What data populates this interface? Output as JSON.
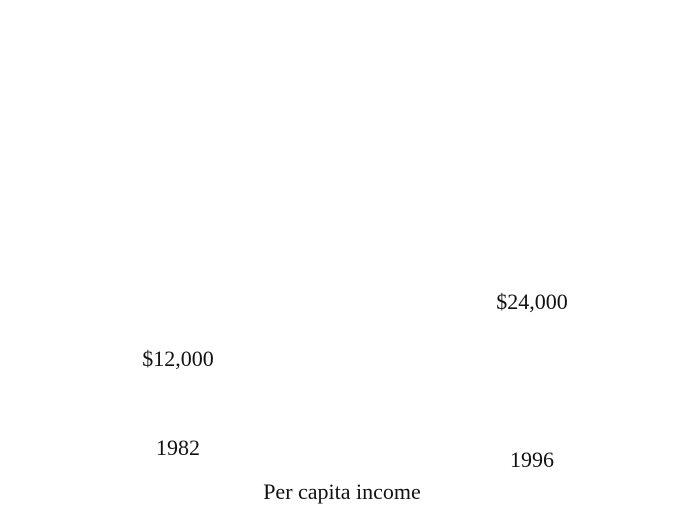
{
  "chart_data": {
    "type": "pictogram",
    "x_label": "Per capita income",
    "categories": [
      "1982",
      "1996"
    ],
    "values": [
      12000,
      24000
    ],
    "value_labels": [
      "$12,000",
      "$24,000"
    ],
    "color": "#ffffff"
  }
}
